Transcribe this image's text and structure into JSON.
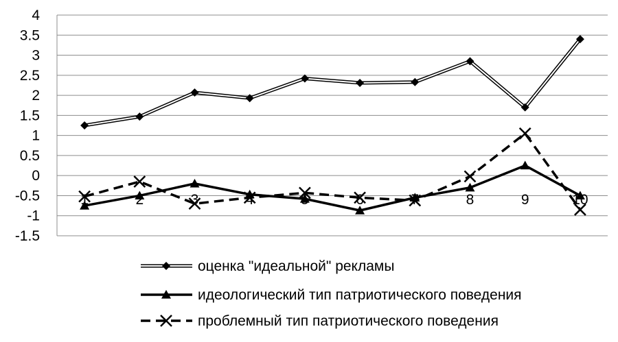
{
  "chart_data": {
    "type": "line",
    "x": [
      1,
      2,
      3,
      4,
      5,
      6,
      7,
      8,
      9,
      10
    ],
    "x_tick_labels": [
      "1",
      "2",
      "3",
      "4",
      "5",
      "6",
      "7",
      "8",
      "9",
      "10"
    ],
    "ylim": [
      -1.5,
      4
    ],
    "y_ticks": [
      -1.5,
      -1,
      -0.5,
      0,
      0.5,
      1,
      1.5,
      2,
      2.5,
      3,
      3.5,
      4
    ],
    "y_tick_labels": [
      "-1.5",
      "-1",
      "-0.5",
      "0",
      "0.5",
      "1",
      "1.5",
      "2",
      "2.5",
      "3",
      "3.5",
      "4"
    ],
    "grid": "horizontal",
    "legend_position": "bottom",
    "series": [
      {
        "name": "оценка \"идеальной\" рекламы",
        "style": "double-line",
        "marker": "diamond",
        "values": [
          1.25,
          1.47,
          2.07,
          1.93,
          2.42,
          2.31,
          2.33,
          2.85,
          1.7,
          3.4
        ]
      },
      {
        "name": "идеологический тип патриотического поведения",
        "style": "solid",
        "marker": "triangle",
        "values": [
          -0.75,
          -0.5,
          -0.2,
          -0.47,
          -0.58,
          -0.87,
          -0.55,
          -0.3,
          0.25,
          -0.5
        ]
      },
      {
        "name": "проблемный тип патриотического поведения",
        "style": "dashed",
        "marker": "x",
        "values": [
          -0.52,
          -0.15,
          -0.7,
          -0.55,
          -0.43,
          -0.55,
          -0.62,
          -0.02,
          1.05,
          -0.85
        ]
      }
    ]
  }
}
